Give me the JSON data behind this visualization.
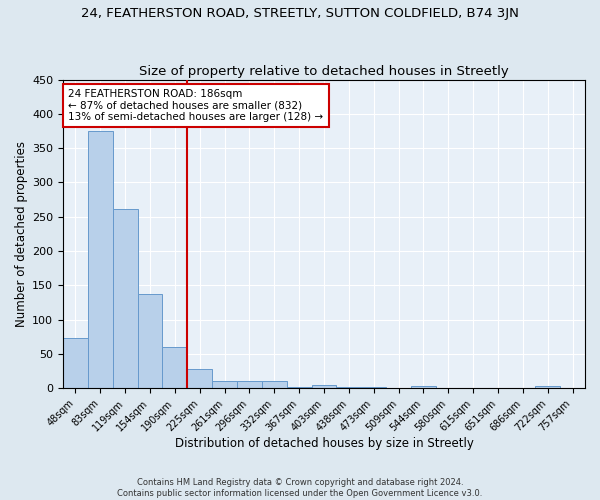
{
  "title_main": "24, FEATHERSTON ROAD, STREETLY, SUTTON COLDFIELD, B74 3JN",
  "title_sub": "Size of property relative to detached houses in Streetly",
  "xlabel": "Distribution of detached houses by size in Streetly",
  "ylabel": "Number of detached properties",
  "bar_labels": [
    "48sqm",
    "83sqm",
    "119sqm",
    "154sqm",
    "190sqm",
    "225sqm",
    "261sqm",
    "296sqm",
    "332sqm",
    "367sqm",
    "403sqm",
    "438sqm",
    "473sqm",
    "509sqm",
    "544sqm",
    "580sqm",
    "615sqm",
    "651sqm",
    "686sqm",
    "722sqm",
    "757sqm"
  ],
  "bar_heights": [
    73,
    375,
    262,
    138,
    60,
    28,
    10,
    10,
    10,
    1,
    4,
    1,
    1,
    0,
    3,
    0,
    0,
    0,
    0,
    3,
    0
  ],
  "bar_color": "#b8d0ea",
  "bar_edge_color": "#6699cc",
  "vline_x": 4.5,
  "vline_color": "#cc0000",
  "annotation_text": "24 FEATHERSTON ROAD: 186sqm\n← 87% of detached houses are smaller (832)\n13% of semi-detached houses are larger (128) →",
  "annotation_box_color": "#cc0000",
  "ylim": [
    0,
    450
  ],
  "yticks": [
    0,
    50,
    100,
    150,
    200,
    250,
    300,
    350,
    400,
    450
  ],
  "footer1": "Contains HM Land Registry data © Crown copyright and database right 2024.",
  "footer2": "Contains public sector information licensed under the Open Government Licence v3.0.",
  "bg_color": "#dde8f0",
  "plot_bg_color": "#e8f0f8"
}
